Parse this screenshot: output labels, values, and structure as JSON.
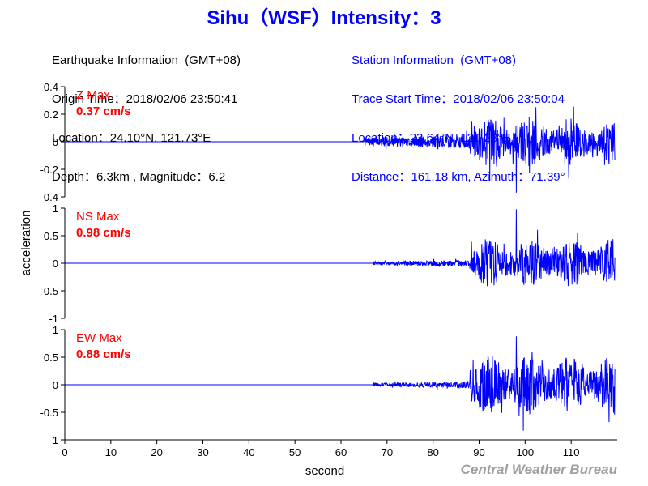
{
  "header": {
    "title": "Sihu（WSF）Intensity：3",
    "earthquake": [
      "Earthquake Information  (GMT+08)",
      "Origin Time：2018/02/06 23:50:41",
      "Location：24.10°N, 121.73°E",
      "Depth：6.3km , Magnitude：6.2"
    ],
    "station": [
      "Station Information  (GMT+08)",
      "Trace Start Time：2018/02/06 23:50:04",
      "Location：23.64°N, 120.23°E",
      "Distance：161.18 km, Azimuth：71.39°"
    ]
  },
  "credit": "Central Weather Bureau",
  "colors": {
    "trace": "#0000ff",
    "max_label": "#ff0000",
    "axis": "#000000"
  },
  "chart_data": [
    {
      "type": "line",
      "component": "Z",
      "max_label": "Z Max",
      "max_value": "0.37 cm/s",
      "ylim": [
        -0.4,
        0.4
      ],
      "yticks": [
        -0.4,
        -0.2,
        0,
        0.2,
        0.4
      ],
      "ytick_labels": [
        "-0.4",
        "-0.2",
        "0",
        "0.2",
        "0.4"
      ],
      "peak": 0.37,
      "onset": 65,
      "arrival": 88,
      "pre_amp": 0.03,
      "coda_amp": 0.05,
      "post_amp": 0.18,
      "seed": 7
    },
    {
      "type": "line",
      "component": "NS",
      "max_label": "NS Max",
      "max_value": "0.98 cm/s",
      "ylim": [
        -1,
        1
      ],
      "yticks": [
        -1,
        -0.5,
        0,
        0.5,
        1
      ],
      "ytick_labels": [
        "-1",
        "-0.5",
        "0",
        "0.5",
        "1"
      ],
      "peak": 0.98,
      "onset": 67,
      "arrival": 88,
      "pre_amp": 0.03,
      "coda_amp": 0.06,
      "post_amp": 0.45,
      "seed": 19
    },
    {
      "type": "line",
      "component": "EW",
      "max_label": "EW Max",
      "max_value": "0.88 cm/s",
      "ylim": [
        -1,
        1
      ],
      "yticks": [
        -1,
        -0.5,
        0,
        0.5,
        1
      ],
      "ytick_labels": [
        "-1",
        "-0.5",
        "0",
        "0.5",
        "1"
      ],
      "peak": 0.88,
      "onset": 67,
      "arrival": 88,
      "pre_amp": 0.03,
      "coda_amp": 0.06,
      "post_amp": 0.55,
      "seed": 31
    }
  ],
  "axes": {
    "xlabel": "second",
    "ylabel": "acceleration",
    "xlim": [
      0,
      120
    ],
    "xticks": [
      0,
      10,
      20,
      30,
      40,
      50,
      60,
      70,
      80,
      90,
      100,
      110
    ],
    "xtick_labels": [
      "0",
      "10",
      "20",
      "30",
      "40",
      "50",
      "60",
      "70",
      "80",
      "90",
      "100",
      "110"
    ]
  }
}
